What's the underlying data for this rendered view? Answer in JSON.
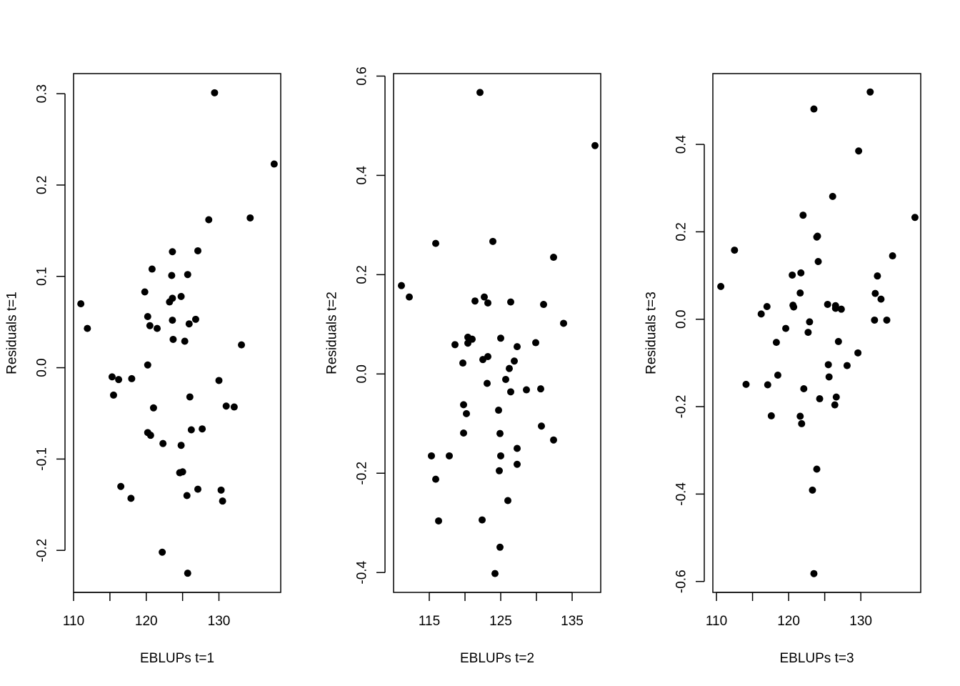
{
  "chart_data": [
    {
      "type": "scatter",
      "title": "",
      "xlabel": "EBLUPs t=1",
      "ylabel": "Residuals t=1",
      "xlim": [
        110,
        138.5
      ],
      "ylim": [
        -0.246,
        0.322
      ],
      "xticks": [
        110,
        120,
        130
      ],
      "yticks": [
        -0.2,
        -0.1,
        0.0,
        0.1,
        0.2,
        0.3
      ],
      "ytick_labels": [
        "-0.2",
        "-0.1",
        "0.0",
        "0.1",
        "0.2",
        "0.3"
      ],
      "grid": false,
      "points": [
        [
          111.0,
          0.07
        ],
        [
          111.9,
          0.043
        ],
        [
          129.4,
          0.301
        ],
        [
          137.6,
          0.223
        ],
        [
          134.3,
          0.164
        ],
        [
          128.6,
          0.162
        ],
        [
          123.6,
          0.127
        ],
        [
          127.1,
          0.128
        ],
        [
          120.8,
          0.108
        ],
        [
          123.5,
          0.101
        ],
        [
          125.7,
          0.102
        ],
        [
          119.8,
          0.083
        ],
        [
          124.8,
          0.078
        ],
        [
          123.6,
          0.076
        ],
        [
          123.2,
          0.072
        ],
        [
          120.2,
          0.056
        ],
        [
          123.6,
          0.052
        ],
        [
          126.8,
          0.053
        ],
        [
          120.5,
          0.046
        ],
        [
          121.5,
          0.043
        ],
        [
          125.9,
          0.048
        ],
        [
          123.7,
          0.031
        ],
        [
          125.3,
          0.029
        ],
        [
          133.1,
          0.025
        ],
        [
          120.2,
          0.003
        ],
        [
          115.3,
          -0.01
        ],
        [
          116.2,
          -0.013
        ],
        [
          118.0,
          -0.012
        ],
        [
          130.0,
          -0.014
        ],
        [
          115.5,
          -0.03
        ],
        [
          126.0,
          -0.032
        ],
        [
          121.0,
          -0.044
        ],
        [
          131.0,
          -0.042
        ],
        [
          132.1,
          -0.043
        ],
        [
          126.2,
          -0.068
        ],
        [
          127.7,
          -0.067
        ],
        [
          120.2,
          -0.071
        ],
        [
          120.6,
          -0.074
        ],
        [
          122.3,
          -0.083
        ],
        [
          124.8,
          -0.085
        ],
        [
          125.0,
          -0.114
        ],
        [
          124.6,
          -0.115
        ],
        [
          116.5,
          -0.13
        ],
        [
          117.9,
          -0.143
        ],
        [
          127.1,
          -0.133
        ],
        [
          125.6,
          -0.14
        ],
        [
          130.3,
          -0.134
        ],
        [
          130.5,
          -0.146
        ],
        [
          122.2,
          -0.202
        ],
        [
          125.7,
          -0.225
        ]
      ]
    },
    {
      "type": "scatter",
      "title": "",
      "xlabel": "EBLUPs t=2",
      "ylabel": "Residuals t=2",
      "xlim": [
        110,
        139
      ],
      "ylim": [
        -0.44,
        0.605
      ],
      "xticks": [
        115,
        125,
        135
      ],
      "yticks": [
        -0.4,
        -0.2,
        0.0,
        0.2,
        0.4,
        0.6
      ],
      "ytick_labels": [
        "-0.4",
        "-0.2",
        "0.0",
        "0.2",
        "0.4",
        "0.6"
      ],
      "grid": false,
      "points": [
        [
          122.1,
          0.567
        ],
        [
          138.2,
          0.46
        ],
        [
          115.9,
          0.263
        ],
        [
          123.9,
          0.267
        ],
        [
          132.4,
          0.235
        ],
        [
          111.1,
          0.178
        ],
        [
          112.2,
          0.155
        ],
        [
          121.4,
          0.147
        ],
        [
          122.7,
          0.155
        ],
        [
          123.2,
          0.143
        ],
        [
          126.4,
          0.145
        ],
        [
          131.0,
          0.14
        ],
        [
          133.8,
          0.102
        ],
        [
          120.4,
          0.074
        ],
        [
          121.0,
          0.07
        ],
        [
          125.0,
          0.072
        ],
        [
          120.4,
          0.062
        ],
        [
          118.6,
          0.059
        ],
        [
          127.3,
          0.055
        ],
        [
          129.9,
          0.063
        ],
        [
          122.5,
          0.029
        ],
        [
          123.2,
          0.035
        ],
        [
          126.9,
          0.026
        ],
        [
          119.7,
          0.022
        ],
        [
          126.2,
          0.011
        ],
        [
          125.7,
          -0.011
        ],
        [
          123.1,
          -0.019
        ],
        [
          126.4,
          -0.036
        ],
        [
          128.6,
          -0.032
        ],
        [
          130.6,
          -0.03
        ],
        [
          119.8,
          -0.062
        ],
        [
          120.2,
          -0.08
        ],
        [
          124.7,
          -0.073
        ],
        [
          130.7,
          -0.105
        ],
        [
          119.8,
          -0.119
        ],
        [
          124.9,
          -0.12
        ],
        [
          115.3,
          -0.165
        ],
        [
          117.8,
          -0.165
        ],
        [
          125.0,
          -0.165
        ],
        [
          127.3,
          -0.15
        ],
        [
          132.4,
          -0.133
        ],
        [
          127.3,
          -0.182
        ],
        [
          115.9,
          -0.212
        ],
        [
          124.8,
          -0.195
        ],
        [
          126.0,
          -0.255
        ],
        [
          116.3,
          -0.296
        ],
        [
          122.4,
          -0.294
        ],
        [
          124.9,
          -0.349
        ],
        [
          124.2,
          -0.402
        ]
      ]
    },
    {
      "type": "scatter",
      "title": "",
      "xlabel": "EBLUPs t=3",
      "ylabel": "Residuals t=3",
      "xlim": [
        109.5,
        138.3
      ],
      "ylim": [
        -0.625,
        0.562
      ],
      "xticks": [
        110,
        120,
        130
      ],
      "yticks": [
        -0.6,
        -0.4,
        -0.2,
        0.0,
        0.2,
        0.4
      ],
      "ytick_labels": [
        "-0.6",
        "-0.4",
        "-0.2",
        "0.0",
        "0.2",
        "0.4"
      ],
      "grid": false,
      "points": [
        [
          131.3,
          0.52
        ],
        [
          123.5,
          0.481
        ],
        [
          129.7,
          0.385
        ],
        [
          126.1,
          0.281
        ],
        [
          137.5,
          0.233
        ],
        [
          122.0,
          0.238
        ],
        [
          123.9,
          0.188
        ],
        [
          124.0,
          0.19
        ],
        [
          112.5,
          0.158
        ],
        [
          134.4,
          0.145
        ],
        [
          124.1,
          0.132
        ],
        [
          110.6,
          0.075
        ],
        [
          121.7,
          0.106
        ],
        [
          120.5,
          0.101
        ],
        [
          132.3,
          0.099
        ],
        [
          121.6,
          0.06
        ],
        [
          132.0,
          0.059
        ],
        [
          132.8,
          0.046
        ],
        [
          125.4,
          0.034
        ],
        [
          126.5,
          0.031
        ],
        [
          117.0,
          0.029
        ],
        [
          120.6,
          0.032
        ],
        [
          120.7,
          0.028
        ],
        [
          126.5,
          0.025
        ],
        [
          127.3,
          0.023
        ],
        [
          116.2,
          0.012
        ],
        [
          131.9,
          -0.002
        ],
        [
          133.6,
          -0.002
        ],
        [
          122.9,
          -0.006
        ],
        [
          119.6,
          -0.021
        ],
        [
          122.7,
          -0.03
        ],
        [
          118.3,
          -0.053
        ],
        [
          126.9,
          -0.051
        ],
        [
          129.6,
          -0.077
        ],
        [
          125.5,
          -0.104
        ],
        [
          128.1,
          -0.106
        ],
        [
          118.5,
          -0.128
        ],
        [
          125.6,
          -0.132
        ],
        [
          114.1,
          -0.149
        ],
        [
          117.1,
          -0.15
        ],
        [
          122.1,
          -0.159
        ],
        [
          126.6,
          -0.178
        ],
        [
          124.3,
          -0.182
        ],
        [
          126.4,
          -0.196
        ],
        [
          117.6,
          -0.221
        ],
        [
          121.6,
          -0.222
        ],
        [
          121.8,
          -0.239
        ],
        [
          123.9,
          -0.343
        ],
        [
          123.3,
          -0.391
        ],
        [
          123.5,
          -0.582
        ]
      ]
    }
  ]
}
